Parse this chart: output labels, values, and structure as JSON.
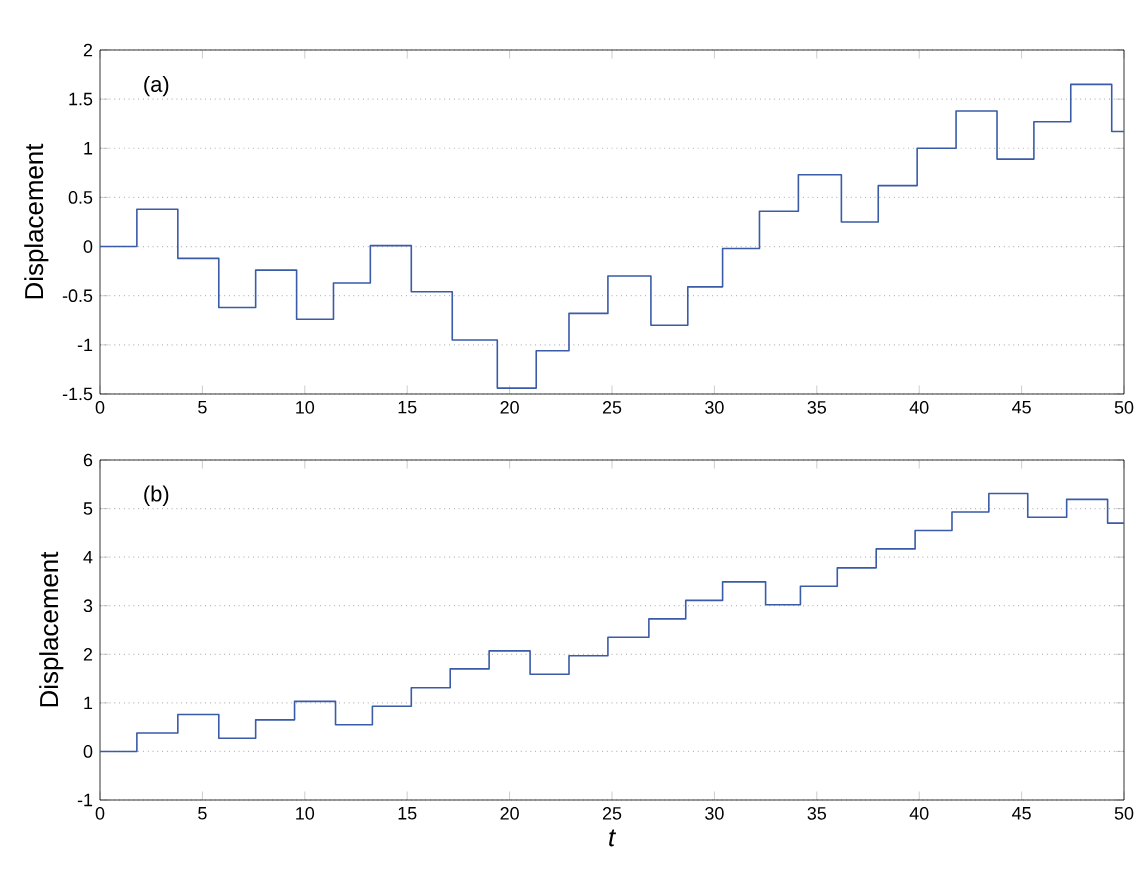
{
  "chart_data": [
    {
      "type": "step",
      "ylabel": "Displacement",
      "annotations": [
        "(a)"
      ],
      "grid": "y",
      "xlim": [
        0,
        50
      ],
      "xticks": [
        0,
        5,
        10,
        15,
        20,
        25,
        30,
        35,
        40,
        45,
        50
      ],
      "ylim": [
        -1.5,
        2
      ],
      "yticks": [
        -1.5,
        -1,
        -0.5,
        0,
        0.5,
        1,
        1.5,
        2
      ],
      "series": [
        {
          "color": "#3a5ba8",
          "x": [
            0,
            1.8,
            3.8,
            5.8,
            7.6,
            9.6,
            11.4,
            13.2,
            15.2,
            17.2,
            19.4,
            21.3,
            22.9,
            24.8,
            26.9,
            28.7,
            30.4,
            32.2,
            34.1,
            36.2,
            38.0,
            39.9,
            41.8,
            43.8,
            45.6,
            47.4,
            49.4,
            50
          ],
          "values": [
            0,
            0.38,
            -0.12,
            -0.62,
            -0.24,
            -0.74,
            -0.37,
            0.01,
            -0.46,
            -0.95,
            -1.44,
            -1.06,
            -0.68,
            -0.3,
            -0.8,
            -0.41,
            -0.02,
            0.36,
            0.73,
            0.25,
            0.62,
            1.0,
            1.38,
            0.89,
            1.27,
            1.65,
            1.17,
            1.17
          ]
        }
      ]
    },
    {
      "type": "step",
      "xlabel": "*t*",
      "ylabel": "Displacement",
      "annotations": [
        "(b)"
      ],
      "grid": "y",
      "xlim": [
        0,
        50
      ],
      "xticks": [
        0,
        5,
        10,
        15,
        20,
        25,
        30,
        35,
        40,
        45,
        50
      ],
      "ylim": [
        -1,
        6
      ],
      "yticks": [
        -1,
        0,
        1,
        2,
        3,
        4,
        5,
        6
      ],
      "series": [
        {
          "color": "#3a5ba8",
          "x": [
            0,
            1.8,
            3.8,
            5.8,
            7.6,
            9.5,
            11.5,
            13.3,
            15.2,
            17.1,
            19.0,
            21.0,
            22.9,
            24.8,
            26.8,
            28.6,
            30.4,
            32.5,
            34.2,
            36.0,
            37.9,
            39.8,
            41.6,
            43.4,
            45.3,
            47.2,
            49.2,
            50
          ],
          "values": [
            0,
            0.38,
            0.76,
            0.27,
            0.65,
            1.03,
            0.55,
            0.93,
            1.31,
            1.7,
            2.07,
            1.59,
            1.97,
            2.35,
            2.73,
            3.11,
            3.49,
            3.02,
            3.4,
            3.78,
            4.17,
            4.55,
            4.93,
            5.31,
            4.82,
            5.19,
            4.7,
            4.7
          ]
        }
      ]
    }
  ]
}
